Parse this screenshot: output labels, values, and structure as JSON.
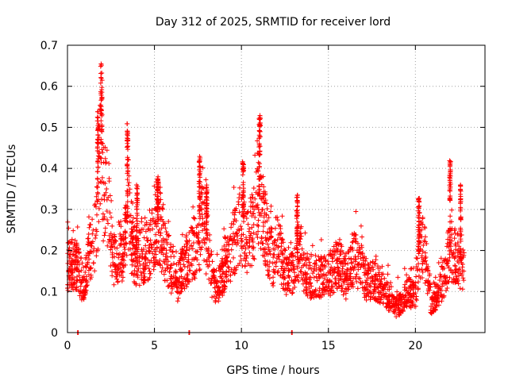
{
  "chart_data": {
    "type": "scatter",
    "title": "Day 312 of 2025, SRMTID for receiver lord",
    "xlabel": "GPS time / hours",
    "ylabel": "SRMTID / TECUs",
    "xlim": [
      0,
      24
    ],
    "ylim": [
      0,
      0.7
    ],
    "xticks": [
      0,
      5,
      10,
      15,
      20
    ],
    "xtick_labels": [
      "0",
      "5",
      "10",
      "15",
      "20"
    ],
    "yticks": [
      0,
      0.1,
      0.2,
      0.3,
      0.4,
      0.5,
      0.6,
      0.7
    ],
    "ytick_labels": [
      "0",
      "0.1",
      "0.2",
      "0.3",
      "0.4",
      "0.5",
      "0.6",
      "0.7"
    ],
    "grid": true,
    "marker": "plus",
    "color": "#ff0000",
    "series": [
      {
        "name": "SRMTID",
        "profile": [
          [
            0.0,
            0.16
          ],
          [
            0.5,
            0.17
          ],
          [
            0.8,
            0.13
          ],
          [
            1.0,
            0.11
          ],
          [
            1.2,
            0.18
          ],
          [
            1.4,
            0.21
          ],
          [
            1.6,
            0.25
          ],
          [
            1.8,
            0.35
          ],
          [
            1.9,
            0.42
          ],
          [
            2.0,
            0.36
          ],
          [
            2.2,
            0.33
          ],
          [
            2.4,
            0.3
          ],
          [
            2.6,
            0.2
          ],
          [
            2.8,
            0.16
          ],
          [
            3.0,
            0.21
          ],
          [
            3.2,
            0.17
          ],
          [
            3.4,
            0.25
          ],
          [
            3.5,
            0.33
          ],
          [
            3.7,
            0.22
          ],
          [
            4.0,
            0.17
          ],
          [
            4.3,
            0.19
          ],
          [
            4.6,
            0.2
          ],
          [
            4.9,
            0.22
          ],
          [
            5.1,
            0.27
          ],
          [
            5.3,
            0.26
          ],
          [
            5.6,
            0.2
          ],
          [
            6.0,
            0.15
          ],
          [
            6.3,
            0.12
          ],
          [
            6.6,
            0.15
          ],
          [
            6.9,
            0.18
          ],
          [
            7.2,
            0.2
          ],
          [
            7.5,
            0.23
          ],
          [
            7.8,
            0.27
          ],
          [
            8.1,
            0.2
          ],
          [
            8.4,
            0.11
          ],
          [
            8.8,
            0.12
          ],
          [
            9.1,
            0.17
          ],
          [
            9.4,
            0.2
          ],
          [
            9.7,
            0.24
          ],
          [
            10.0,
            0.27
          ],
          [
            10.3,
            0.21
          ],
          [
            10.6,
            0.25
          ],
          [
            11.0,
            0.34
          ],
          [
            11.2,
            0.3
          ],
          [
            11.5,
            0.22
          ],
          [
            11.8,
            0.18
          ],
          [
            12.1,
            0.22
          ],
          [
            12.4,
            0.16
          ],
          [
            12.7,
            0.13
          ],
          [
            13.0,
            0.15
          ],
          [
            13.3,
            0.2
          ],
          [
            13.6,
            0.16
          ],
          [
            14.0,
            0.12
          ],
          [
            14.4,
            0.14
          ],
          [
            14.8,
            0.13
          ],
          [
            15.2,
            0.15
          ],
          [
            15.6,
            0.17
          ],
          [
            16.0,
            0.13
          ],
          [
            16.4,
            0.18
          ],
          [
            16.8,
            0.17
          ],
          [
            17.2,
            0.12
          ],
          [
            17.6,
            0.13
          ],
          [
            18.0,
            0.11
          ],
          [
            18.4,
            0.09
          ],
          [
            18.8,
            0.06
          ],
          [
            19.2,
            0.07
          ],
          [
            19.6,
            0.1
          ],
          [
            20.0,
            0.09
          ],
          [
            20.3,
            0.22
          ],
          [
            20.6,
            0.18
          ],
          [
            20.9,
            0.07
          ],
          [
            21.2,
            0.09
          ],
          [
            21.6,
            0.13
          ],
          [
            22.0,
            0.2
          ],
          [
            22.3,
            0.19
          ],
          [
            22.6,
            0.17
          ],
          [
            22.8,
            0.15
          ]
        ],
        "spikes": [
          {
            "x": 1.95,
            "peak": 0.66,
            "width": 0.09
          },
          {
            "x": 1.75,
            "peak": 0.54,
            "width": 0.06
          },
          {
            "x": 3.45,
            "peak": 0.51,
            "width": 0.06
          },
          {
            "x": 11.05,
            "peak": 0.53,
            "width": 0.08
          },
          {
            "x": 7.6,
            "peak": 0.43,
            "width": 0.07
          },
          {
            "x": 10.1,
            "peak": 0.42,
            "width": 0.07
          },
          {
            "x": 22.0,
            "peak": 0.42,
            "width": 0.07
          },
          {
            "x": 5.2,
            "peak": 0.38,
            "width": 0.07
          },
          {
            "x": 4.0,
            "peak": 0.36,
            "width": 0.06
          },
          {
            "x": 8.0,
            "peak": 0.36,
            "width": 0.06
          },
          {
            "x": 13.2,
            "peak": 0.34,
            "width": 0.06
          },
          {
            "x": 20.2,
            "peak": 0.33,
            "width": 0.07
          },
          {
            "x": 22.6,
            "peak": 0.36,
            "width": 0.03
          }
        ],
        "zero_points": [
          0.6,
          7.0,
          12.9
        ]
      }
    ]
  }
}
